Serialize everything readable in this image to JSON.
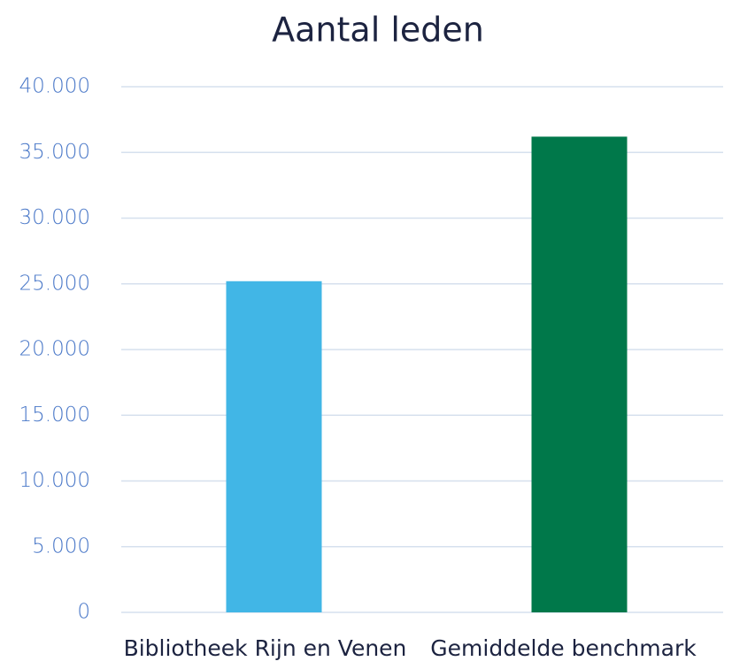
{
  "chart_data": {
    "type": "bar",
    "title": "Aantal leden",
    "categories": [
      "Bibliotheek Rijn en Venen",
      "Gemiddelde benchmark"
    ],
    "values": [
      25200,
      36200
    ],
    "colors": [
      "#41b6e6",
      "#00784a"
    ],
    "ylim": [
      0,
      40000
    ],
    "yticks": [
      0,
      {
        "value": 5000,
        "label": "5.000"
      },
      {
        "value": 10000,
        "label": "10.000"
      },
      {
        "value": 15000,
        "label": "15.000"
      },
      {
        "value": 20000,
        "label": "20.000"
      },
      {
        "value": 25000,
        "label": "25.000"
      },
      {
        "value": 30000,
        "label": "30.000"
      },
      {
        "value": 35000,
        "label": "35.000"
      },
      {
        "value": 40000,
        "label": "40.000"
      }
    ],
    "grid": true
  }
}
